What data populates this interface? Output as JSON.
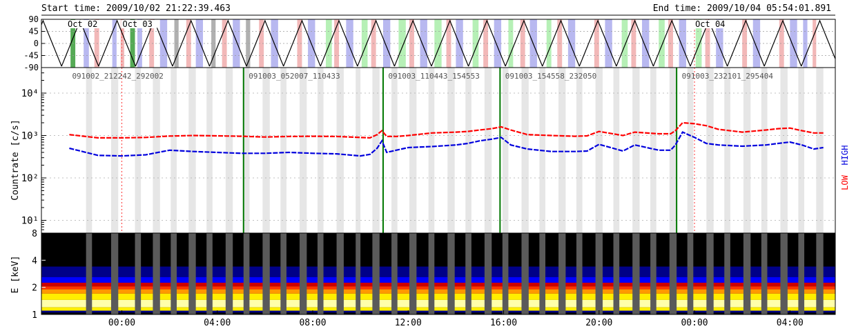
{
  "header": {
    "start_time": "Start time: 2009/10/02 21:22:39.463",
    "end_time": "End time: 2009/10/04 05:54:01.891"
  },
  "chart_data": [
    {
      "type": "line",
      "panel": "orbit",
      "ylim": [
        -90,
        90
      ],
      "yticks": [
        "90",
        "45",
        "0",
        "-45",
        "-90"
      ],
      "ytick_values": [
        90,
        45,
        0,
        -45,
        -90
      ],
      "day_labels": [
        {
          "t": -2.3,
          "label": "Oct 02"
        },
        {
          "t": 0.0,
          "label": "Oct 03"
        },
        {
          "t": 24.0,
          "label": "Oct 04"
        }
      ],
      "period_hours": 1.55,
      "first_peak_hour": -1.75,
      "band_colors": {
        "south": "#b8b8f0",
        "north": "#f2b8b8",
        "saa": "#b6f0b6",
        "gap": "#b0b0b0",
        "dark_green": "#55aa55"
      },
      "bands": [
        {
          "t": -2.15,
          "w": 0.2,
          "c": "dark_green"
        },
        {
          "t": -1.6,
          "w": 0.22,
          "c": "south"
        },
        {
          "t": -1.15,
          "w": 0.2,
          "c": "north"
        },
        {
          "t": -0.4,
          "w": 0.18,
          "c": "south"
        },
        {
          "t": -0.05,
          "w": 0.15,
          "c": "north"
        },
        {
          "t": 0.35,
          "w": 0.2,
          "c": "dark_green"
        },
        {
          "t": 0.65,
          "w": 0.2,
          "c": "south"
        },
        {
          "t": 1.15,
          "w": 0.2,
          "c": "north"
        },
        {
          "t": 1.6,
          "w": 0.3,
          "c": "south"
        },
        {
          "t": 2.2,
          "w": 0.18,
          "c": "gap"
        },
        {
          "t": 2.7,
          "w": 0.2,
          "c": "north"
        },
        {
          "t": 3.1,
          "w": 0.3,
          "c": "south"
        },
        {
          "t": 3.75,
          "w": 0.18,
          "c": "gap"
        },
        {
          "t": 4.2,
          "w": 0.2,
          "c": "north"
        },
        {
          "t": 4.65,
          "w": 0.3,
          "c": "south"
        },
        {
          "t": 5.2,
          "w": 0.18,
          "c": "gap"
        },
        {
          "t": 5.75,
          "w": 0.2,
          "c": "north"
        },
        {
          "t": 6.25,
          "w": 0.3,
          "c": "south"
        },
        {
          "t": 7.35,
          "w": 0.2,
          "c": "north"
        },
        {
          "t": 7.8,
          "w": 0.3,
          "c": "south"
        },
        {
          "t": 8.55,
          "w": 0.25,
          "c": "saa"
        },
        {
          "t": 8.9,
          "w": 0.2,
          "c": "north"
        },
        {
          "t": 9.4,
          "w": 0.3,
          "c": "south"
        },
        {
          "t": 10.05,
          "w": 0.25,
          "c": "saa"
        },
        {
          "t": 10.45,
          "w": 0.2,
          "c": "north"
        },
        {
          "t": 10.95,
          "w": 0.3,
          "c": "south"
        },
        {
          "t": 11.6,
          "w": 0.3,
          "c": "saa"
        },
        {
          "t": 12.05,
          "w": 0.2,
          "c": "north"
        },
        {
          "t": 12.5,
          "w": 0.3,
          "c": "south"
        },
        {
          "t": 13.1,
          "w": 0.3,
          "c": "saa"
        },
        {
          "t": 13.6,
          "w": 0.2,
          "c": "north"
        },
        {
          "t": 14.0,
          "w": 0.3,
          "c": "south"
        },
        {
          "t": 14.7,
          "w": 0.25,
          "c": "saa"
        },
        {
          "t": 15.15,
          "w": 0.2,
          "c": "north"
        },
        {
          "t": 15.6,
          "w": 0.3,
          "c": "south"
        },
        {
          "t": 16.2,
          "w": 0.2,
          "c": "saa"
        },
        {
          "t": 16.7,
          "w": 0.2,
          "c": "north"
        },
        {
          "t": 17.1,
          "w": 0.3,
          "c": "south"
        },
        {
          "t": 17.8,
          "w": 0.2,
          "c": "saa"
        },
        {
          "t": 18.25,
          "w": 0.2,
          "c": "north"
        },
        {
          "t": 18.7,
          "w": 0.3,
          "c": "south"
        },
        {
          "t": 19.8,
          "w": 0.2,
          "c": "north"
        },
        {
          "t": 20.25,
          "w": 0.3,
          "c": "south"
        },
        {
          "t": 20.95,
          "w": 0.25,
          "c": "saa"
        },
        {
          "t": 21.35,
          "w": 0.2,
          "c": "north"
        },
        {
          "t": 21.8,
          "w": 0.3,
          "c": "south"
        },
        {
          "t": 22.5,
          "w": 0.25,
          "c": "saa"
        },
        {
          "t": 22.9,
          "w": 0.2,
          "c": "north"
        },
        {
          "t": 23.35,
          "w": 0.3,
          "c": "south"
        },
        {
          "t": 24.05,
          "w": 0.25,
          "c": "saa"
        },
        {
          "t": 24.45,
          "w": 0.2,
          "c": "north"
        },
        {
          "t": 24.9,
          "w": 0.3,
          "c": "south"
        },
        {
          "t": 26.0,
          "w": 0.2,
          "c": "north"
        },
        {
          "t": 26.45,
          "w": 0.3,
          "c": "south"
        },
        {
          "t": 27.55,
          "w": 0.2,
          "c": "north"
        },
        {
          "t": 28.0,
          "w": 0.3,
          "c": "south"
        },
        {
          "t": 28.55,
          "w": 0.18,
          "c": "south"
        },
        {
          "t": 28.95,
          "w": 0.15,
          "c": "north"
        }
      ]
    },
    {
      "type": "line",
      "panel": "lightcurve",
      "yscale": "log",
      "ylim": [
        5,
        40000
      ],
      "ylabel": "Countrate [c/s]",
      "yticks": [
        "10¹",
        "10²",
        "10³",
        "10⁴"
      ],
      "ytick_values": [
        10,
        100,
        1000,
        10000
      ],
      "legend": [
        "HIGH",
        "LOW"
      ],
      "legend_placement": "right",
      "series": [
        {
          "name": "LOW",
          "color": "#ff0000",
          "t": [
            -2.2,
            -1.0,
            0.0,
            1.0,
            2.0,
            3.0,
            4.0,
            5.0,
            6.0,
            7.0,
            8.0,
            9.0,
            10.0,
            10.4,
            10.7,
            10.9,
            11.1,
            11.5,
            12.0,
            13.0,
            14.0,
            14.5,
            15.0,
            15.5,
            15.9,
            16.3,
            17.0,
            18.0,
            19.0,
            19.5,
            20.0,
            21.0,
            21.5,
            22.5,
            23.0,
            23.2,
            23.5,
            24.0,
            24.5,
            25.0,
            26.0,
            27.0,
            27.5,
            28.0,
            28.5,
            29.0,
            29.4
          ],
          "values": [
            1050,
            880,
            880,
            900,
            970,
            1000,
            980,
            960,
            920,
            950,
            960,
            950,
            900,
            880,
            1050,
            1300,
            950,
            950,
            1000,
            1150,
            1200,
            1250,
            1350,
            1450,
            1600,
            1350,
            1050,
            1000,
            960,
            980,
            1250,
            1000,
            1200,
            1100,
            1100,
            1300,
            2000,
            1900,
            1700,
            1400,
            1200,
            1350,
            1450,
            1500,
            1300,
            1150,
            1150
          ]
        },
        {
          "name": "HIGH",
          "color": "#0000dd",
          "t": [
            -2.2,
            -1.0,
            0.0,
            1.0,
            2.0,
            3.0,
            4.0,
            5.0,
            6.0,
            7.0,
            8.0,
            9.0,
            10.0,
            10.4,
            10.7,
            10.9,
            11.1,
            11.5,
            12.0,
            13.0,
            14.0,
            14.5,
            15.0,
            15.5,
            15.9,
            16.3,
            17.0,
            18.0,
            19.0,
            19.5,
            20.0,
            21.0,
            21.5,
            22.5,
            23.0,
            23.2,
            23.5,
            24.0,
            24.5,
            25.0,
            26.0,
            27.0,
            27.5,
            28.0,
            28.5,
            29.0,
            29.4
          ],
          "values": [
            500,
            340,
            330,
            350,
            450,
            420,
            400,
            380,
            380,
            400,
            380,
            370,
            330,
            360,
            500,
            750,
            400,
            450,
            520,
            550,
            600,
            650,
            750,
            820,
            900,
            600,
            480,
            420,
            420,
            430,
            620,
            430,
            600,
            450,
            450,
            600,
            1200,
            900,
            650,
            600,
            560,
            600,
            650,
            700,
            600,
            480,
            520
          ]
        }
      ],
      "obs_ids": [
        {
          "t": -2.2,
          "label": "091002_212242_292002"
        },
        {
          "t": 5.2,
          "label": "091003_052007_110433"
        },
        {
          "t": 11.05,
          "label": "091003_110443_154553"
        },
        {
          "t": 15.95,
          "label": "091003_154558_232050"
        },
        {
          "t": 23.35,
          "label": "091003_232101_295404"
        }
      ],
      "boundaries": [
        5.1,
        10.95,
        15.85,
        23.25
      ],
      "day_marks": [
        0.0,
        24.0
      ]
    },
    {
      "type": "heatmap",
      "panel": "spectrogram",
      "yscale": "log",
      "ylim": [
        1,
        8
      ],
      "ylabel": "E [keV]",
      "yticks": [
        "1",
        "2",
        "4",
        "8"
      ],
      "ytick_values": [
        1,
        2,
        4,
        8
      ],
      "colormap": [
        "#000000",
        "#000088",
        "#0000ff",
        "#cc0000",
        "#ff3300",
        "#ff9900",
        "#ffee00",
        "#ffffaa",
        "#ffffff"
      ]
    }
  ],
  "xaxis": {
    "range_hours": [
      -3.37,
      29.9
    ],
    "ticks": [
      {
        "t": 0,
        "label": "00:00"
      },
      {
        "t": 4,
        "label": "04:00"
      },
      {
        "t": 8,
        "label": "08:00"
      },
      {
        "t": 12,
        "label": "12:00"
      },
      {
        "t": 16,
        "label": "16:00"
      },
      {
        "t": 20,
        "label": "20:00"
      },
      {
        "t": 24,
        "label": "00:00"
      },
      {
        "t": 28,
        "label": "04:00"
      }
    ]
  },
  "gaps": [
    {
      "t": -1.5,
      "w": 0.25
    },
    {
      "t": -0.45,
      "w": 0.3
    },
    {
      "t": 0.55,
      "w": 0.25
    },
    {
      "t": 1.3,
      "w": 0.3
    },
    {
      "t": 2.05,
      "w": 0.25
    },
    {
      "t": 2.8,
      "w": 0.3
    },
    {
      "t": 3.55,
      "w": 0.25
    },
    {
      "t": 4.35,
      "w": 0.3
    },
    {
      "t": 5.1,
      "w": 0.25
    },
    {
      "t": 5.9,
      "w": 0.3
    },
    {
      "t": 6.65,
      "w": 0.25
    },
    {
      "t": 7.45,
      "w": 0.3
    },
    {
      "t": 8.2,
      "w": 0.25
    },
    {
      "t": 9.0,
      "w": 0.3
    },
    {
      "t": 9.8,
      "w": 0.2
    },
    {
      "t": 10.5,
      "w": 0.3
    },
    {
      "t": 11.3,
      "w": 0.25
    },
    {
      "t": 12.05,
      "w": 0.3
    },
    {
      "t": 12.85,
      "w": 0.25
    },
    {
      "t": 13.65,
      "w": 0.3
    },
    {
      "t": 14.4,
      "w": 0.25
    },
    {
      "t": 15.2,
      "w": 0.3
    },
    {
      "t": 15.95,
      "w": 0.25
    },
    {
      "t": 16.75,
      "w": 0.3
    },
    {
      "t": 17.5,
      "w": 0.25
    },
    {
      "t": 18.3,
      "w": 0.3
    },
    {
      "t": 19.05,
      "w": 0.25
    },
    {
      "t": 19.85,
      "w": 0.3
    },
    {
      "t": 20.6,
      "w": 0.25
    },
    {
      "t": 21.4,
      "w": 0.3
    },
    {
      "t": 22.15,
      "w": 0.25
    },
    {
      "t": 22.95,
      "w": 0.3
    },
    {
      "t": 23.7,
      "w": 0.25
    },
    {
      "t": 24.5,
      "w": 0.3
    },
    {
      "t": 25.25,
      "w": 0.25
    },
    {
      "t": 26.05,
      "w": 0.3
    },
    {
      "t": 26.8,
      "w": 0.25
    },
    {
      "t": 27.6,
      "w": 0.3
    },
    {
      "t": 28.35,
      "w": 0.25
    },
    {
      "t": 29.1,
      "w": 0.3
    }
  ]
}
